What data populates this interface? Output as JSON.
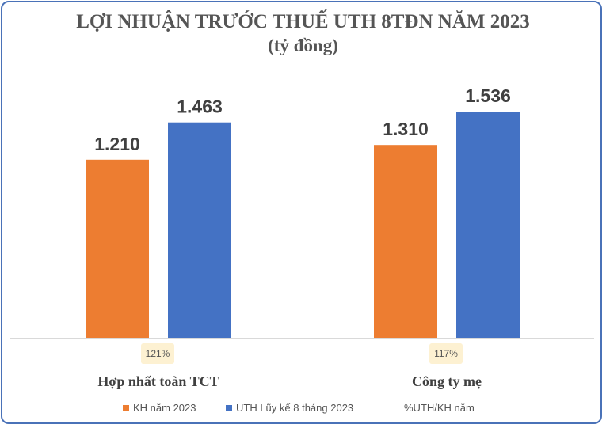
{
  "chart_data": {
    "type": "bar",
    "title": "LỢI NHUẬN TRƯỚC THUẾ UTH 8TĐN NĂM 2023",
    "subtitle": "(tỷ đồng)",
    "categories": [
      "Hợp nhất toàn TCT",
      "Công ty mẹ"
    ],
    "series": [
      {
        "name": "KH năm 2023",
        "values": [
          1210,
          1310
        ],
        "labels": [
          "1.210",
          "1.310"
        ],
        "color": "#ed7d31"
      },
      {
        "name": "UTH Lũy kế 8 tháng 2023",
        "values": [
          1463,
          1536
        ],
        "labels": [
          "1.463",
          "1.536"
        ],
        "color": "#4472c4"
      }
    ],
    "ratio_series": {
      "name": "%UTH/KH năm",
      "labels": [
        "121%",
        "117%"
      ]
    },
    "ylim": [
      0,
      1800
    ],
    "grid": false,
    "legend": "bottom"
  }
}
